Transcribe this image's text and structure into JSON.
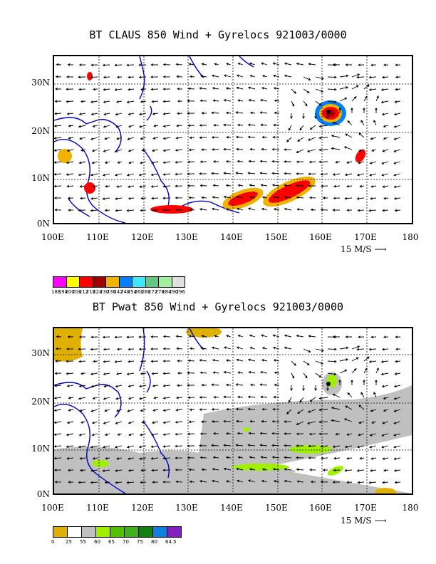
{
  "panel1": {
    "title": "BT CLAUS 850 Wind + Gyrelocs 921003/0000",
    "y_labels": [
      "30N",
      "20N",
      "10N",
      "0N"
    ],
    "x_labels": [
      "100E",
      "110E",
      "120E",
      "130E",
      "140E",
      "150E",
      "160E",
      "170E",
      "180"
    ],
    "scale_label": "15 M/S",
    "legend_colors": [
      "#ff00ff",
      "#ffff00",
      "#ff0000",
      "#a00000",
      "#f0b400",
      "#0080ff",
      "#40e8ff",
      "#60c880",
      "#a0f0a0",
      "#e0e0e0"
    ],
    "legend_ticks": [
      "188",
      "194",
      "200",
      "206",
      "212",
      "218",
      "224",
      "230",
      "236",
      "242",
      "248",
      "254",
      "260",
      "266",
      "272",
      "278",
      "284",
      "290",
      "296"
    ]
  },
  "panel2": {
    "title": "BT Pwat 850 Wind + Gyrelocs 921003/0000",
    "y_labels": [
      "30N",
      "20N",
      "10N",
      "0N"
    ],
    "x_labels": [
      "100E",
      "110E",
      "120E",
      "130E",
      "140E",
      "150E",
      "160E",
      "170E",
      "180"
    ],
    "scale_label": "15 M/S",
    "legend_colors": [
      "#e0b000",
      "#ffffff",
      "#c0c0c0",
      "#a0f000",
      "#50c000",
      "#40b020",
      "#108010",
      "#1080e0",
      "#8020c0"
    ],
    "legend_ticks": [
      "0",
      "25",
      "55",
      "60",
      "65",
      "70",
      "75",
      "80",
      "64.5"
    ]
  }
}
